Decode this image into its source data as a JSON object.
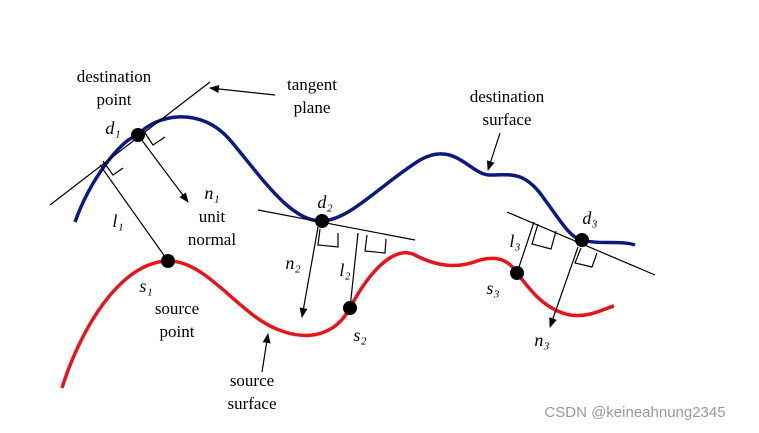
{
  "labels": {
    "destination_point": [
      "destination",
      "point"
    ],
    "tangent_plane": [
      "tangent",
      "plane"
    ],
    "destination_surface": [
      "destination",
      "surface"
    ],
    "unit_normal": [
      "unit",
      "normal"
    ],
    "source_point": [
      "source",
      "point"
    ],
    "source_surface": [
      "source",
      "surface"
    ],
    "d": [
      "d₁",
      "d₂",
      "d₃"
    ],
    "n": [
      "n₁",
      "n₂",
      "n₃"
    ],
    "l": [
      "l₁",
      "l₂",
      "l₃"
    ],
    "s": [
      "s₁",
      "s₂",
      "s₃"
    ]
  },
  "watermark": "CSDN @keineahnung2345"
}
